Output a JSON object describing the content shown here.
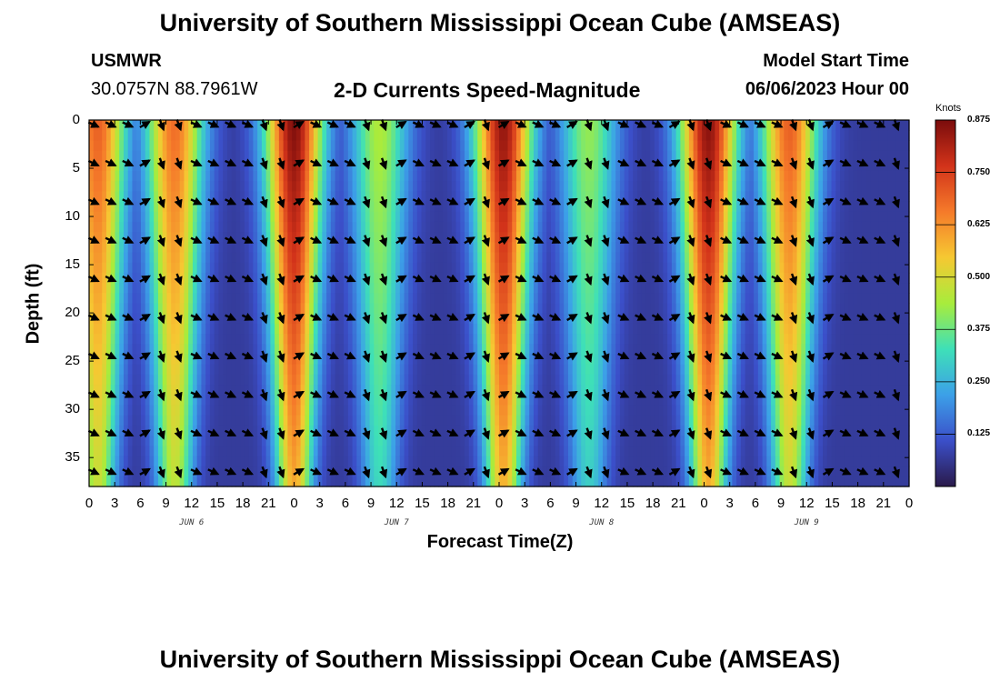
{
  "header": {
    "title": "University of Southern Mississippi Ocean Cube (AMSEAS)",
    "station": "USMWR",
    "coords": "30.0757N  88.7961W",
    "subtitle": "2-D Currents Speed-Magnitude",
    "model_start_label": "Model Start Time",
    "model_start_value": "06/06/2023 Hour 00"
  },
  "footer": {
    "title": "University of Southern Mississippi Ocean Cube (AMSEAS)"
  },
  "chart_data": {
    "type": "heatmap",
    "title": "2-D Currents Speed-Magnitude",
    "xlabel": "Forecast Time(Z)",
    "ylabel": "Depth (ft)",
    "x_range_hours": [
      0,
      96
    ],
    "ylim": [
      0,
      38
    ],
    "y_ticks": [
      "0",
      "5",
      "10",
      "15",
      "20",
      "25",
      "30",
      "35"
    ],
    "x_ticks": [
      "0",
      "3",
      "6",
      "9",
      "12",
      "15",
      "18",
      "21",
      "0",
      "3",
      "6",
      "9",
      "12",
      "15",
      "18",
      "21",
      "0",
      "3",
      "6",
      "9",
      "12",
      "15",
      "18",
      "21",
      "0",
      "3",
      "6",
      "9",
      "12",
      "15",
      "18",
      "21",
      "0"
    ],
    "date_labels": [
      "JUN 6",
      "JUN 7",
      "JUN 8",
      "JUN 9"
    ],
    "colorbar": {
      "label": "Knots",
      "range": [
        0,
        0.875
      ],
      "ticks": [
        "0.875",
        "0.750",
        "0.625",
        "0.500",
        "0.375",
        "0.250",
        "0.125"
      ]
    },
    "speed_peaks_knots": [
      {
        "hour": 1,
        "peak": 0.7
      },
      {
        "hour": 10,
        "peak": 0.68
      },
      {
        "hour": 24,
        "peak": 0.87
      },
      {
        "hour": 34,
        "peak": 0.45
      },
      {
        "hour": 48.5,
        "peak": 0.85
      },
      {
        "hour": 58.5,
        "peak": 0.42
      },
      {
        "hour": 72.5,
        "peak": 0.86
      },
      {
        "hour": 82,
        "peak": 0.7
      }
    ],
    "arrow_depths_ft": [
      0,
      4,
      8,
      12,
      16,
      20,
      24,
      28,
      32,
      36
    ],
    "arrow_interval_hours": 2
  },
  "colors": {
    "palette": [
      "#2a1a4a",
      "#3b4fc9",
      "#3ca0e8",
      "#3ee0b8",
      "#a8ec3c",
      "#f6c832",
      "#f57a2a",
      "#d2331a",
      "#7a0c0c"
    ]
  }
}
